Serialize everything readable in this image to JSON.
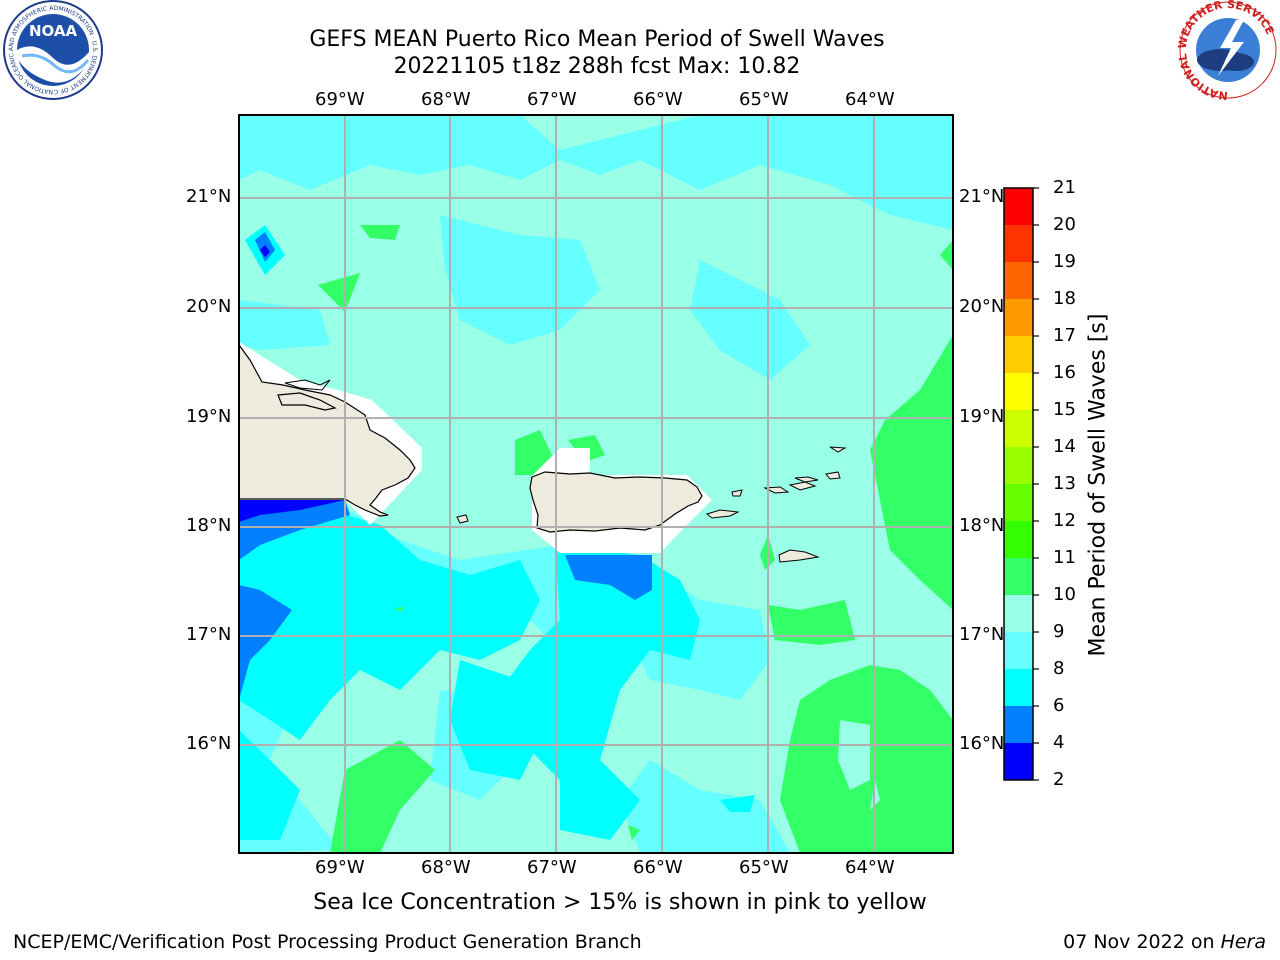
{
  "header": {
    "title_line1": "GEFS MEAN Puerto Rico Mean Period of Swell Waves",
    "title_line2": "20221105 t18z 288h fcst   Max: 10.82"
  },
  "logos": {
    "noaa": {
      "text": "NOAA",
      "ring_text": "NATIONAL OCEANIC AND ATMOSPHERIC ADMINISTRATION · U.S. DEPARTMENT OF COMMERCE"
    },
    "nws": {
      "ring_text": "NATIONAL WEATHER SERVICE"
    }
  },
  "map": {
    "lon_labels": [
      "69°W",
      "68°W",
      "67°W",
      "66°W",
      "65°W",
      "64°W"
    ],
    "lat_labels": [
      "21°N",
      "20°N",
      "19°N",
      "18°N",
      "17°N",
      "16°N"
    ],
    "land_color": "#ecebdd",
    "gridline_color": "#b0b0b0"
  },
  "colorbar": {
    "label": "Mean Period of Swell Waves [s]",
    "ticks": [
      "2",
      "4",
      "6",
      "8",
      "9",
      "10",
      "11",
      "12",
      "13",
      "14",
      "15",
      "16",
      "17",
      "18",
      "19",
      "20",
      "21"
    ],
    "colors": [
      "#0000ff",
      "#0080ff",
      "#00ffff",
      "#66ffff",
      "#99ffe6",
      "#33ff66",
      "#33ff00",
      "#66ff00",
      "#99ff00",
      "#ccff00",
      "#ffff00",
      "#ffcc00",
      "#ff9900",
      "#ff6600",
      "#ff3300",
      "#ff0000"
    ]
  },
  "caption": "Sea Ice Concentration > 15% is shown in pink to yellow",
  "footer": {
    "left": "NCEP/EMC/Verification Post Processing Product Generation Branch",
    "right_prefix": "07 Nov 2022 on ",
    "right_host": "Hera"
  }
}
